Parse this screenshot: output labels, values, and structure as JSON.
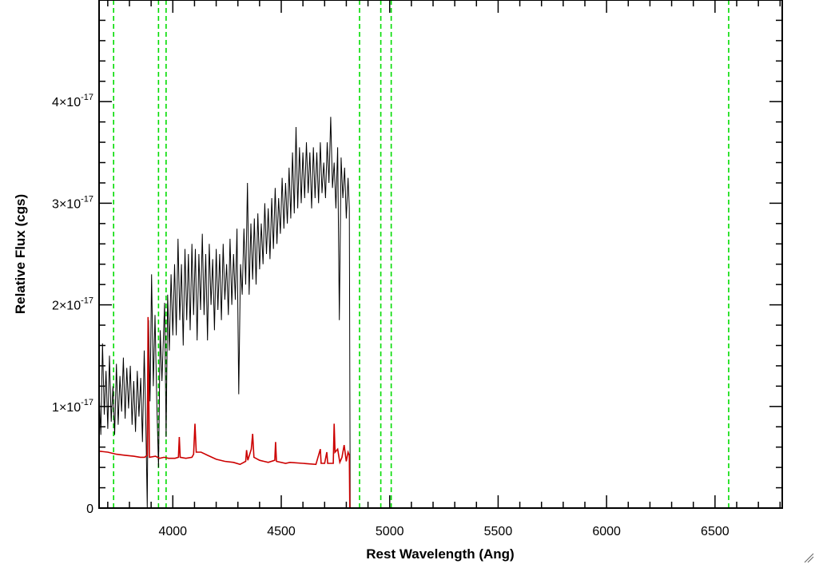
{
  "chart_data": {
    "type": "line",
    "title": "",
    "xlabel": "Rest Wavelength (Ang)",
    "ylabel": "Relative Flux (cgs)",
    "xlim": [
      3660,
      6810
    ],
    "ylim": [
      0,
      5e-17
    ],
    "x_ticks": [
      {
        "value": 4000,
        "label": "4000"
      },
      {
        "value": 4500,
        "label": "4500"
      },
      {
        "value": 5000,
        "label": "5000"
      },
      {
        "value": 5500,
        "label": "5500"
      },
      {
        "value": 6000,
        "label": "6000"
      },
      {
        "value": 6500,
        "label": "6500"
      }
    ],
    "y_ticks": [
      {
        "value": 0,
        "mantissa": "0",
        "exponent": ""
      },
      {
        "value": 1e-17,
        "mantissa": "1×10",
        "exponent": "-17"
      },
      {
        "value": 2e-17,
        "mantissa": "2×10",
        "exponent": "-17"
      },
      {
        "value": 3e-17,
        "mantissa": "3×10",
        "exponent": "-17"
      },
      {
        "value": 4e-17,
        "mantissa": "4×10",
        "exponent": "-17"
      }
    ],
    "grid": false,
    "legend": "none",
    "vertical_lines": {
      "color": "#00dd00",
      "style": "dashed",
      "x": [
        3727,
        3934,
        3969,
        4861,
        4959,
        5007,
        6563
      ]
    },
    "series": [
      {
        "color": "#000000",
        "points": [
          [
            3660,
            1.15
          ],
          [
            3668,
            0.72
          ],
          [
            3676,
            1.62
          ],
          [
            3684,
            0.92
          ],
          [
            3692,
            1.35
          ],
          [
            3700,
            0.78
          ],
          [
            3708,
            1.5
          ],
          [
            3716,
            0.85
          ],
          [
            3724,
            1.2
          ],
          [
            3732,
            0.72
          ],
          [
            3740,
            1.42
          ],
          [
            3748,
            0.82
          ],
          [
            3756,
            1.3
          ],
          [
            3764,
            0.95
          ],
          [
            3772,
            1.48
          ],
          [
            3780,
            0.88
          ],
          [
            3788,
            1.38
          ],
          [
            3796,
            0.98
          ],
          [
            3804,
            1.4
          ],
          [
            3812,
            0.82
          ],
          [
            3820,
            1.25
          ],
          [
            3828,
            0.75
          ],
          [
            3836,
            1.35
          ],
          [
            3844,
            0.9
          ],
          [
            3852,
            1.28
          ],
          [
            3860,
            0.65
          ],
          [
            3868,
            1.55
          ],
          [
            3876,
            0.8
          ],
          [
            3882,
            0.0
          ],
          [
            3888,
            1.85
          ],
          [
            3895,
            1.05
          ],
          [
            3902,
            2.3
          ],
          [
            3910,
            1.2
          ],
          [
            3918,
            1.9
          ],
          [
            3926,
            1.05
          ],
          [
            3934,
            0.4
          ],
          [
            3942,
            1.75
          ],
          [
            3950,
            1.25
          ],
          [
            3962,
            2.02
          ],
          [
            3969,
            0.7
          ],
          [
            3976,
            2.1
          ],
          [
            3984,
            1.55
          ],
          [
            3992,
            2.3
          ],
          [
            4000,
            1.7
          ],
          [
            4008,
            2.4
          ],
          [
            4016,
            1.7
          ],
          [
            4024,
            2.65
          ],
          [
            4032,
            1.85
          ],
          [
            4040,
            2.4
          ],
          [
            4048,
            1.6
          ],
          [
            4056,
            2.55
          ],
          [
            4064,
            1.85
          ],
          [
            4072,
            2.5
          ],
          [
            4080,
            1.75
          ],
          [
            4088,
            2.6
          ],
          [
            4096,
            1.9
          ],
          [
            4104,
            2.55
          ],
          [
            4112,
            1.65
          ],
          [
            4120,
            2.5
          ],
          [
            4128,
            1.95
          ],
          [
            4136,
            2.7
          ],
          [
            4144,
            1.9
          ],
          [
            4152,
            2.5
          ],
          [
            4160,
            1.65
          ],
          [
            4168,
            2.6
          ],
          [
            4176,
            2.0
          ],
          [
            4184,
            2.45
          ],
          [
            4192,
            1.75
          ],
          [
            4200,
            2.55
          ],
          [
            4208,
            1.95
          ],
          [
            4216,
            2.5
          ],
          [
            4224,
            1.85
          ],
          [
            4232,
            2.6
          ],
          [
            4240,
            2.05
          ],
          [
            4248,
            2.4
          ],
          [
            4256,
            1.9
          ],
          [
            4264,
            2.65
          ],
          [
            4272,
            2.0
          ],
          [
            4280,
            2.5
          ],
          [
            4288,
            2.05
          ],
          [
            4296,
            2.75
          ],
          [
            4304,
            1.12
          ],
          [
            4312,
            2.4
          ],
          [
            4320,
            2.1
          ],
          [
            4328,
            2.75
          ],
          [
            4336,
            2.2
          ],
          [
            4344,
            3.2
          ],
          [
            4352,
            2.1
          ],
          [
            4360,
            2.8
          ],
          [
            4368,
            2.25
          ],
          [
            4376,
            2.85
          ],
          [
            4384,
            2.2
          ],
          [
            4392,
            2.9
          ],
          [
            4400,
            2.35
          ],
          [
            4408,
            2.8
          ],
          [
            4416,
            2.4
          ],
          [
            4424,
            3.0
          ],
          [
            4432,
            2.5
          ],
          [
            4440,
            2.95
          ],
          [
            4448,
            2.45
          ],
          [
            4456,
            3.05
          ],
          [
            4464,
            2.55
          ],
          [
            4472,
            3.15
          ],
          [
            4480,
            2.6
          ],
          [
            4488,
            3.05
          ],
          [
            4496,
            2.7
          ],
          [
            4504,
            3.25
          ],
          [
            4512,
            2.75
          ],
          [
            4520,
            3.2
          ],
          [
            4528,
            2.8
          ],
          [
            4536,
            3.35
          ],
          [
            4544,
            2.85
          ],
          [
            4552,
            3.5
          ],
          [
            4560,
            2.9
          ],
          [
            4568,
            3.75
          ],
          [
            4576,
            2.95
          ],
          [
            4584,
            3.55
          ],
          [
            4592,
            3.0
          ],
          [
            4600,
            3.5
          ],
          [
            4608,
            3.05
          ],
          [
            4616,
            3.6
          ],
          [
            4624,
            3.1
          ],
          [
            4632,
            3.5
          ],
          [
            4640,
            2.95
          ],
          [
            4648,
            3.55
          ],
          [
            4656,
            3.05
          ],
          [
            4664,
            3.5
          ],
          [
            4672,
            3.0
          ],
          [
            4680,
            3.6
          ],
          [
            4688,
            3.1
          ],
          [
            4696,
            3.4
          ],
          [
            4704,
            3.05
          ],
          [
            4712,
            3.6
          ],
          [
            4720,
            3.2
          ],
          [
            4728,
            3.85
          ],
          [
            4736,
            3.15
          ],
          [
            4744,
            3.4
          ],
          [
            4752,
            2.95
          ],
          [
            4760,
            3.55
          ],
          [
            4768,
            1.85
          ],
          [
            4776,
            3.45
          ],
          [
            4784,
            3.05
          ],
          [
            4792,
            3.35
          ],
          [
            4800,
            2.85
          ],
          [
            4808,
            3.25
          ],
          [
            4814,
            2.95
          ],
          [
            4818,
            0.0
          ],
          [
            6810,
            0.0
          ]
        ]
      },
      {
        "color": "#cc0000",
        "points": [
          [
            3660,
            0.56
          ],
          [
            3700,
            0.55
          ],
          [
            3740,
            0.53
          ],
          [
            3780,
            0.52
          ],
          [
            3820,
            0.51
          ],
          [
            3850,
            0.5
          ],
          [
            3870,
            0.5
          ],
          [
            3882,
            0.52
          ],
          [
            3886,
            1.88
          ],
          [
            3892,
            0.5
          ],
          [
            3920,
            0.51
          ],
          [
            3940,
            0.49
          ],
          [
            3960,
            0.5
          ],
          [
            3980,
            0.49
          ],
          [
            4010,
            0.49
          ],
          [
            4026,
            0.5
          ],
          [
            4030,
            0.7
          ],
          [
            4034,
            0.5
          ],
          [
            4060,
            0.49
          ],
          [
            4088,
            0.5
          ],
          [
            4096,
            0.53
          ],
          [
            4102,
            0.83
          ],
          [
            4108,
            0.55
          ],
          [
            4130,
            0.55
          ],
          [
            4160,
            0.52
          ],
          [
            4200,
            0.48
          ],
          [
            4240,
            0.46
          ],
          [
            4280,
            0.45
          ],
          [
            4310,
            0.43
          ],
          [
            4336,
            0.46
          ],
          [
            4340,
            0.57
          ],
          [
            4346,
            0.47
          ],
          [
            4362,
            0.58
          ],
          [
            4368,
            0.73
          ],
          [
            4374,
            0.5
          ],
          [
            4400,
            0.47
          ],
          [
            4420,
            0.46
          ],
          [
            4440,
            0.45
          ],
          [
            4470,
            0.47
          ],
          [
            4474,
            0.65
          ],
          [
            4478,
            0.46
          ],
          [
            4520,
            0.44
          ],
          [
            4540,
            0.45
          ],
          [
            4600,
            0.44
          ],
          [
            4660,
            0.43
          ],
          [
            4680,
            0.58
          ],
          [
            4684,
            0.44
          ],
          [
            4700,
            0.44
          ],
          [
            4710,
            0.55
          ],
          [
            4714,
            0.44
          ],
          [
            4740,
            0.44
          ],
          [
            4744,
            0.83
          ],
          [
            4748,
            0.55
          ],
          [
            4760,
            0.58
          ],
          [
            4770,
            0.45
          ],
          [
            4780,
            0.5
          ],
          [
            4790,
            0.62
          ],
          [
            4800,
            0.46
          ],
          [
            4808,
            0.55
          ],
          [
            4814,
            0.52
          ],
          [
            4816,
            0.0
          ],
          [
            6810,
            0.0
          ]
        ]
      }
    ]
  }
}
